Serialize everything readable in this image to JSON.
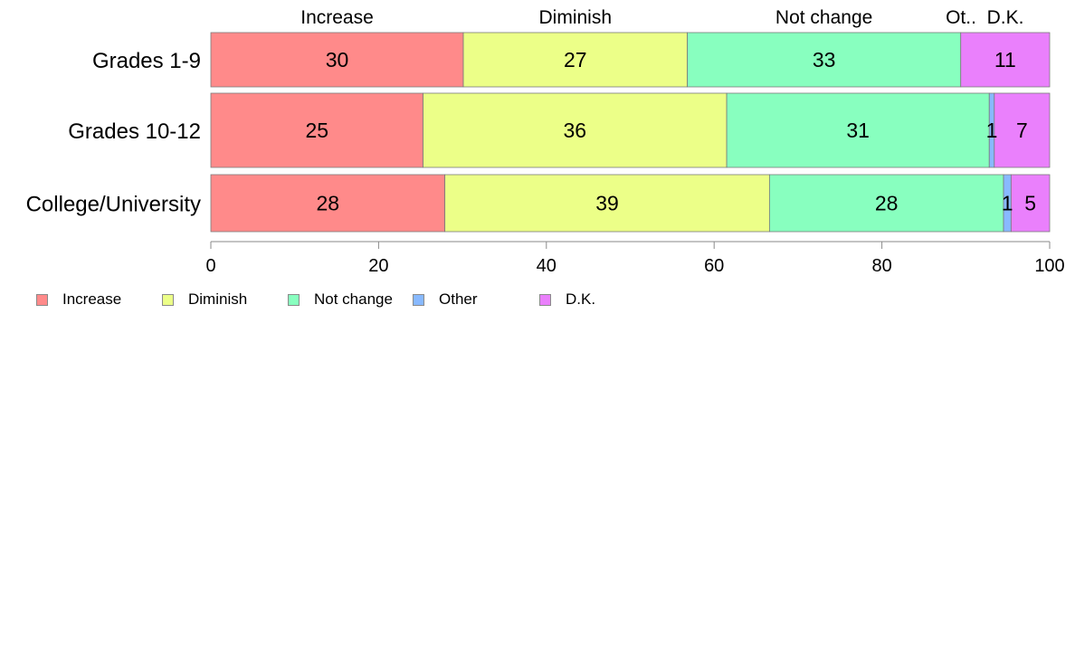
{
  "chart_data": {
    "type": "bar",
    "orientation": "horizontal",
    "stacked": true,
    "title": "",
    "xlabel": "",
    "ylabel": "",
    "xlim": [
      0,
      100
    ],
    "xticks": [
      0,
      20,
      40,
      60,
      80,
      100
    ],
    "grid": false,
    "legend_position": "bottom-left",
    "top_labels": [
      "Increase",
      "Diminish",
      "Not change",
      "Ot..",
      "D.K."
    ],
    "categories": [
      "Grades 1-9",
      "Grades 10-12",
      "College/University"
    ],
    "series": [
      {
        "name": "Increase",
        "color": "#ff8a8a",
        "values": [
          30.1,
          25.3,
          27.9
        ],
        "labels": [
          "30",
          "25",
          "28"
        ]
      },
      {
        "name": "Diminish",
        "color": "#ecff88",
        "values": [
          26.7,
          36.2,
          38.7
        ],
        "labels": [
          "27",
          "36",
          "39"
        ]
      },
      {
        "name": "Not change",
        "color": "#88ffbf",
        "values": [
          32.6,
          31.3,
          27.9
        ],
        "labels": [
          "33",
          "31",
          "28"
        ]
      },
      {
        "name": "Other",
        "color": "#88b9ff",
        "values": [
          0.0,
          0.6,
          0.9
        ],
        "labels": [
          "",
          "1",
          "1"
        ]
      },
      {
        "name": "D.K.",
        "color": "#ea80fc",
        "values": [
          10.6,
          6.6,
          4.6
        ],
        "labels": [
          "11",
          "7",
          "5"
        ]
      }
    ]
  }
}
